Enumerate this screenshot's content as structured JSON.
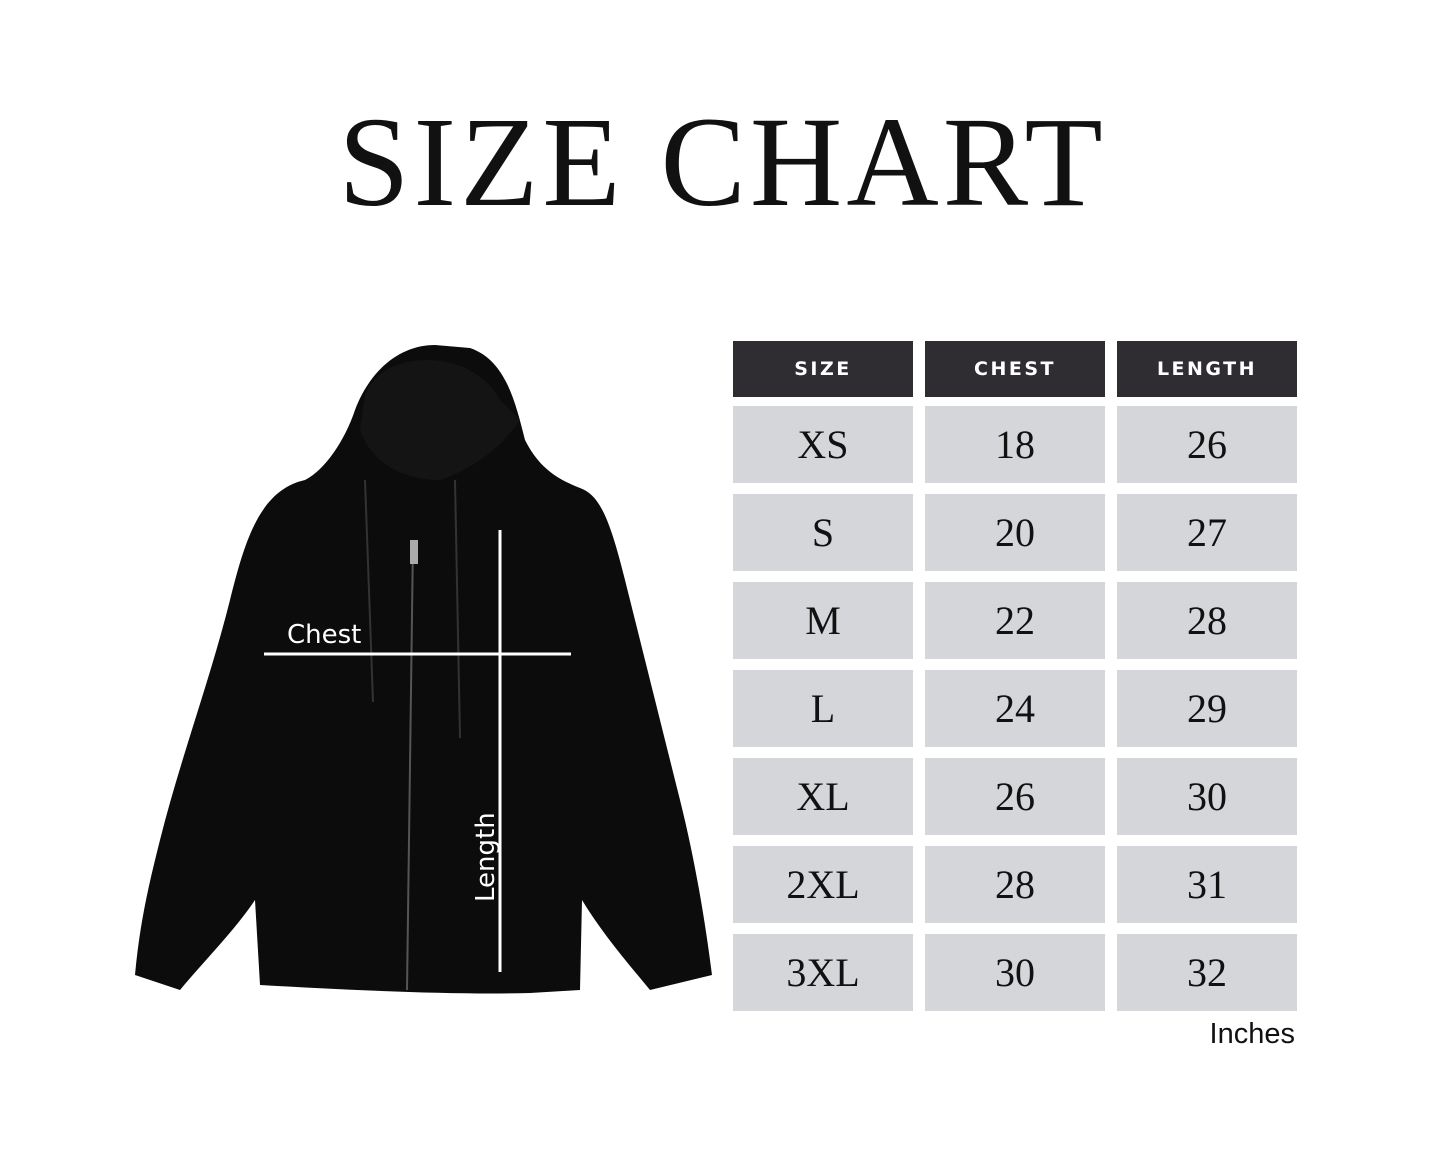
{
  "title": "SIZE CHART",
  "diagram": {
    "chest_label": "Chest",
    "length_label": "Length",
    "garment": "black zip-up hoodie"
  },
  "table": {
    "headers": [
      "SIZE",
      "CHEST",
      "LENGTH"
    ],
    "rows": [
      [
        "XS",
        "18",
        "26"
      ],
      [
        "S",
        "20",
        "27"
      ],
      [
        "M",
        "22",
        "28"
      ],
      [
        "L",
        "24",
        "29"
      ],
      [
        "XL",
        "26",
        "30"
      ],
      [
        "2XL",
        "28",
        "31"
      ],
      [
        "3XL",
        "30",
        "32"
      ]
    ],
    "unit": "Inches"
  },
  "colors": {
    "header_bg": "#2f2d32",
    "cell_bg": "#d5d6da",
    "hoodie": "#0c0c0c"
  }
}
